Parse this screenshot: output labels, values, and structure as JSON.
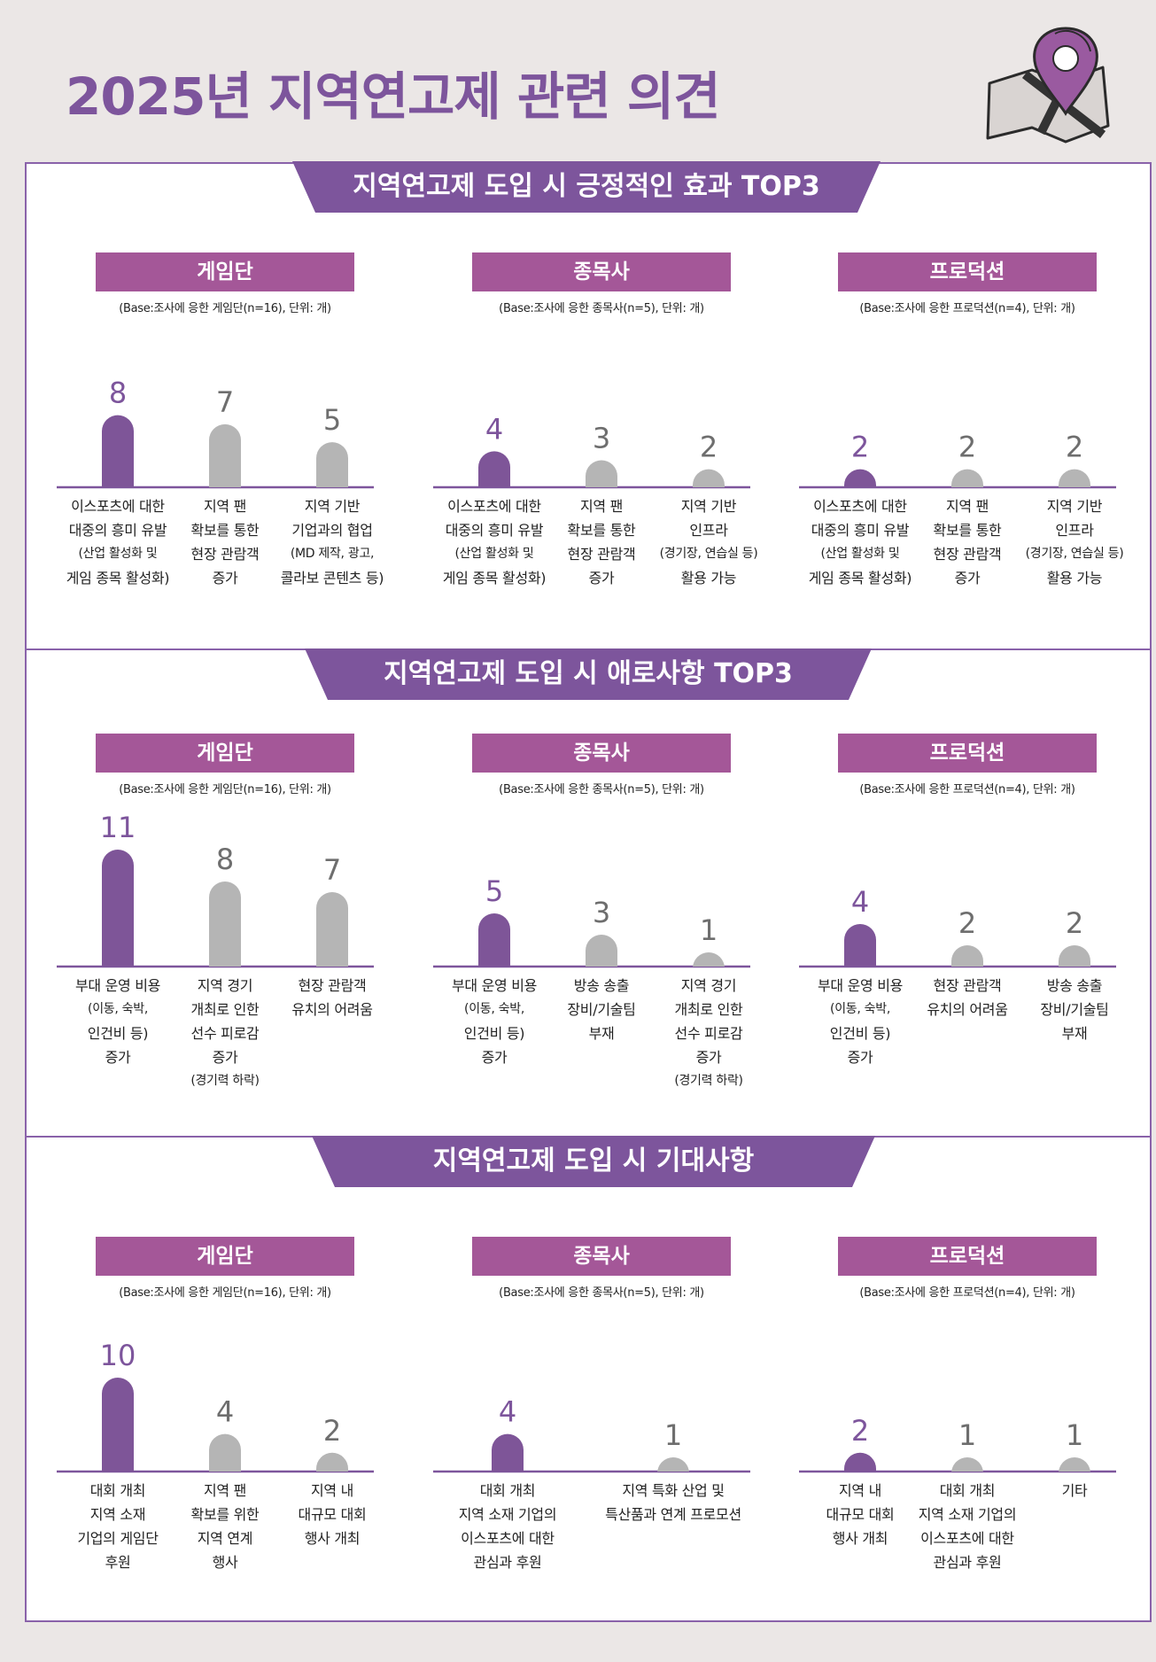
{
  "page_title": "2025년 지역연고제 관련 의견",
  "colors": {
    "accent": "#7d559c",
    "highlight_bar": "#7e5598",
    "gray_bar": "#b5b5b5",
    "group_header": "#a45798",
    "banner": "#7d559c"
  },
  "icons": [
    "map-pin-icon"
  ],
  "sections": [
    {
      "title": "지역연고제 도입 시 긍정적인 효과 TOP3",
      "groups": [
        {
          "name": "게임단",
          "base": "(Base:조사에 응한 게임단(n=16), 단위: 개)",
          "categories": [
            [
              "이스포츠에 대한",
              "대중의 흥미 유발",
              "(산업 활성화 및",
              "게임 종목 활성화)"
            ],
            [
              "지역 팬",
              "확보를 통한",
              "현장 관람객",
              "증가"
            ],
            [
              "지역 기반",
              "기업과의 협업",
              "(MD 제작, 광고,",
              "콜라보 콘텐츠 등)"
            ]
          ],
          "values": [
            8,
            7,
            5
          ],
          "value_labels": [
            "8",
            "7",
            "5"
          ]
        },
        {
          "name": "종목사",
          "base": "(Base:조사에 응한 종목사(n=5), 단위: 개)",
          "categories": [
            [
              "이스포츠에 대한",
              "대중의 흥미 유발",
              "(산업 활성화 및",
              "게임 종목 활성화)"
            ],
            [
              "지역 팬",
              "확보를 통한",
              "현장 관람객",
              "증가"
            ],
            [
              "지역 기반",
              "인프라",
              "(경기장, 연습실 등)",
              "활용 가능"
            ]
          ],
          "values": [
            4,
            3,
            2
          ],
          "value_labels": [
            "4",
            "3",
            "2"
          ]
        },
        {
          "name": "프로덕션",
          "base": "(Base:조사에 응한 프로덕션(n=4), 단위: 개)",
          "categories": [
            [
              "이스포츠에 대한",
              "대중의 흥미 유발",
              "(산업 활성화 및",
              "게임 종목 활성화)"
            ],
            [
              "지역 팬",
              "확보를 통한",
              "현장 관람객",
              "증가"
            ],
            [
              "지역 기반",
              "인프라",
              "(경기장, 연습실 등)",
              "활용 가능"
            ]
          ],
          "values": [
            2,
            2,
            2
          ],
          "value_labels": [
            "2",
            "2",
            "2"
          ]
        }
      ]
    },
    {
      "title": "지역연고제 도입 시 애로사항 TOP3",
      "groups": [
        {
          "name": "게임단",
          "base": "(Base:조사에 응한 게임단(n=16), 단위: 개)",
          "categories": [
            [
              "부대 운영 비용",
              "(이동, 숙박,",
              "인건비 등)",
              "증가"
            ],
            [
              "지역 경기",
              "개최로 인한",
              "선수 피로감",
              "증가",
              "(경기력 하락)"
            ],
            [
              "현장 관람객",
              "유치의 어려움"
            ]
          ],
          "values": [
            11,
            8,
            7
          ],
          "value_labels": [
            "11",
            "8",
            "7"
          ]
        },
        {
          "name": "종목사",
          "base": "(Base:조사에 응한 종목사(n=5), 단위: 개)",
          "categories": [
            [
              "부대 운영 비용",
              "(이동, 숙박,",
              "인건비 등)",
              "증가"
            ],
            [
              "방송 송출",
              "장비/기술팀",
              "부재"
            ],
            [
              "지역 경기",
              "개최로 인한",
              "선수 피로감",
              "증가",
              "(경기력 하락)"
            ]
          ],
          "values": [
            5,
            3,
            1
          ],
          "value_labels": [
            "5",
            "3",
            "1"
          ]
        },
        {
          "name": "프로덕션",
          "base": "(Base:조사에 응한 프로덕션(n=4), 단위: 개)",
          "categories": [
            [
              "부대 운영 비용",
              "(이동, 숙박,",
              "인건비 등)",
              "증가"
            ],
            [
              "현장 관람객",
              "유치의 어려움"
            ],
            [
              "방송 송출",
              "장비/기술팀",
              "부재"
            ]
          ],
          "values": [
            4,
            2,
            2
          ],
          "value_labels": [
            "4",
            "2",
            "2"
          ]
        }
      ]
    },
    {
      "title": "지역연고제 도입 시 기대사항",
      "groups": [
        {
          "name": "게임단",
          "base": "(Base:조사에 응한 게임단(n=16), 단위: 개)",
          "categories": [
            [
              "대회 개최",
              "지역 소재",
              "기업의 게임단",
              "후원"
            ],
            [
              "지역 팬",
              "확보를 위한",
              "지역 연계",
              "행사"
            ],
            [
              "지역 내",
              "대규모 대회",
              "행사 개최"
            ]
          ],
          "values": [
            10,
            4,
            2
          ],
          "value_labels": [
            "10",
            "4",
            "2"
          ]
        },
        {
          "name": "종목사",
          "base": "(Base:조사에 응한 종목사(n=5), 단위: 개)",
          "categories": [
            [
              "대회 개최",
              "지역 소재 기업의",
              "이스포츠에 대한",
              "관심과 후원"
            ],
            [
              "지역 특화 산업 및",
              "특산품과 연계 프로모션"
            ]
          ],
          "values": [
            4,
            1
          ],
          "value_labels": [
            "4",
            "1"
          ]
        },
        {
          "name": "프로덕션",
          "base": "(Base:조사에 응한 프로덕션(n=4), 단위: 개)",
          "categories": [
            [
              "지역 내",
              "대규모 대회",
              "행사 개최"
            ],
            [
              "대회 개최",
              "지역 소재 기업의",
              "이스포츠에 대한",
              "관심과 후원"
            ],
            [
              "기타"
            ]
          ],
          "values": [
            2,
            1,
            1
          ],
          "value_labels": [
            "2",
            "1",
            "1"
          ]
        }
      ]
    }
  ],
  "chart_data": [
    {
      "type": "bar",
      "title": "지역연고제 도입 시 긍정적인 효과 TOP3",
      "series": [
        {
          "name": "게임단",
          "categories": [
            "이스포츠에 대한 대중의 흥미 유발",
            "지역 팬 확보를 통한 현장 관람객 증가",
            "지역 기반 기업과의 협업"
          ],
          "values": [
            8,
            7,
            5
          ]
        },
        {
          "name": "종목사",
          "categories": [
            "이스포츠에 대한 대중의 흥미 유발",
            "지역 팬 확보를 통한 현장 관람객 증가",
            "지역 기반 인프라 활용 가능"
          ],
          "values": [
            4,
            3,
            2
          ]
        },
        {
          "name": "프로덕션",
          "categories": [
            "이스포츠에 대한 대중의 흥미 유발",
            "지역 팬 확보를 통한 현장 관람객 증가",
            "지역 기반 인프라 활용 가능"
          ],
          "values": [
            2,
            2,
            2
          ]
        }
      ],
      "ylabel": "",
      "grid": false
    },
    {
      "type": "bar",
      "title": "지역연고제 도입 시 애로사항 TOP3",
      "series": [
        {
          "name": "게임단",
          "categories": [
            "부대 운영 비용 증가",
            "지역 경기 개최로 인한 선수 피로감 증가",
            "현장 관람객 유치의 어려움"
          ],
          "values": [
            11,
            8,
            7
          ]
        },
        {
          "name": "종목사",
          "categories": [
            "부대 운영 비용 증가",
            "방송 송출 장비/기술팀 부재",
            "지역 경기 개최로 인한 선수 피로감 증가"
          ],
          "values": [
            5,
            3,
            1
          ]
        },
        {
          "name": "프로덕션",
          "categories": [
            "부대 운영 비용 증가",
            "현장 관람객 유치의 어려움",
            "방송 송출 장비/기술팀 부재"
          ],
          "values": [
            4,
            2,
            2
          ]
        }
      ],
      "ylabel": "",
      "grid": false
    },
    {
      "type": "bar",
      "title": "지역연고제 도입 시 기대사항",
      "series": [
        {
          "name": "게임단",
          "categories": [
            "대회 개최 지역 소재 기업의 게임단 후원",
            "지역 팬 확보를 위한 지역 연계 행사",
            "지역 내 대규모 대회 행사 개최"
          ],
          "values": [
            10,
            4,
            2
          ]
        },
        {
          "name": "종목사",
          "categories": [
            "대회 개최 지역 소재 기업의 이스포츠에 대한 관심과 후원",
            "지역 특화 산업 및 특산품과 연계 프로모션"
          ],
          "values": [
            4,
            1
          ]
        },
        {
          "name": "프로덕션",
          "categories": [
            "지역 내 대규모 대회 행사 개최",
            "대회 개최 지역 소재 기업의 이스포츠에 대한 관심과 후원",
            "기타"
          ],
          "values": [
            2,
            1,
            1
          ]
        }
      ],
      "ylabel": "",
      "grid": false
    }
  ]
}
